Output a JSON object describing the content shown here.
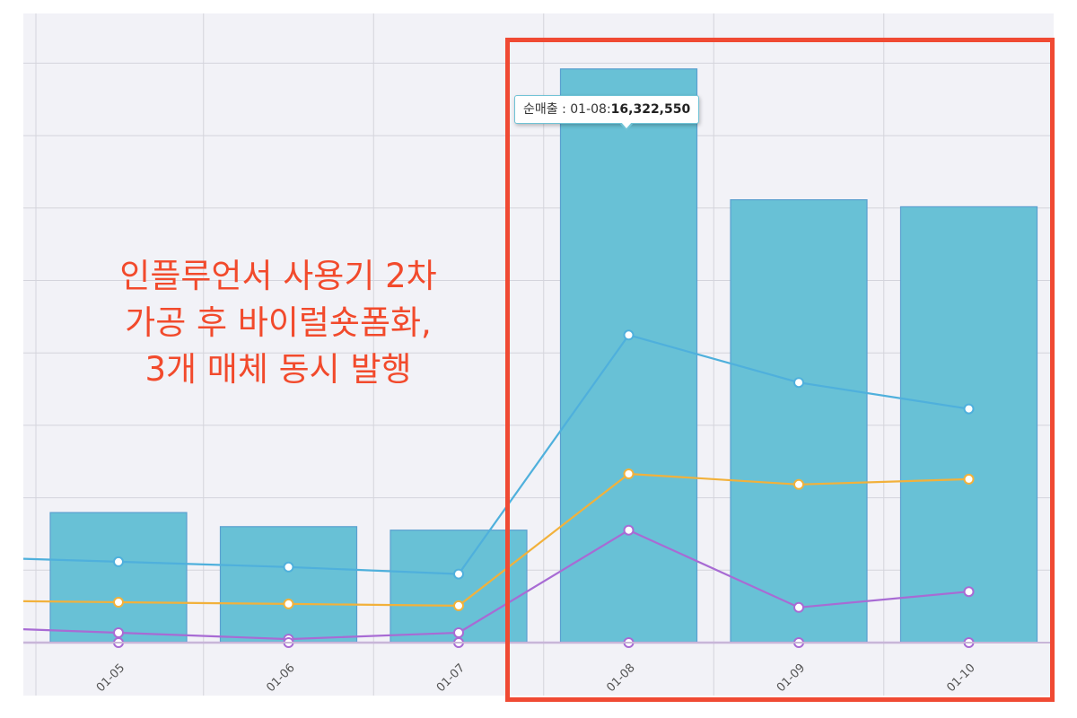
{
  "chart_data": {
    "type": "bar",
    "categories": [
      "01-05",
      "01-06",
      "01-07",
      "01-08",
      "01-09",
      "01-10"
    ],
    "bar_series": {
      "values": [
        3700000,
        3300000,
        3200000,
        16322550,
        12600000,
        12400000
      ],
      "color": "#68c1d6"
    },
    "line_series": [
      {
        "values": [
          2300000,
          2150000,
          1950000,
          8750000,
          7400000,
          6650000
        ],
        "color": "#4fb0dc"
      },
      {
        "values": [
          1150000,
          1100000,
          1050000,
          4800000,
          4500000,
          4650000
        ],
        "color": "#f2b13b"
      },
      {
        "values": [
          280000,
          100000,
          280000,
          3200000,
          1000000,
          1450000
        ],
        "color": "#a86bd4"
      },
      {
        "values": [
          0,
          0,
          0,
          0,
          0,
          0
        ],
        "color": "#a86bd4"
      }
    ],
    "ylim": [
      0,
      17900000
    ],
    "grid": true
  },
  "tooltip": {
    "label": "순매출 : 01-08:",
    "value": "16,322,550"
  },
  "annotation": {
    "lines": [
      "인플루언서 사용기 2차",
      "가공 후 바이럴숏폼화,",
      "3개 매체 동시 발행"
    ]
  },
  "colors": {
    "plot_background": "#f2f2f7",
    "grid": "#d4d4dc",
    "highlight": "#f04a33"
  }
}
